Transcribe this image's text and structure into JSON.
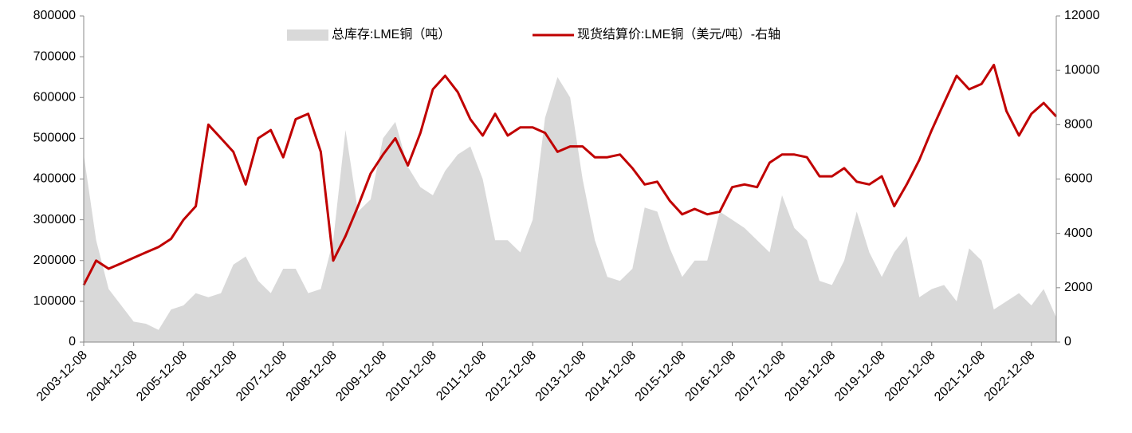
{
  "chart_data": {
    "type": "line",
    "x": [
      "2003-12-08",
      "2004-03-08",
      "2004-06-08",
      "2004-09-08",
      "2004-12-08",
      "2005-03-08",
      "2005-06-08",
      "2005-09-08",
      "2005-12-08",
      "2006-03-08",
      "2006-06-08",
      "2006-09-08",
      "2006-12-08",
      "2007-03-08",
      "2007-06-08",
      "2007-09-08",
      "2007-12-08",
      "2008-03-08",
      "2008-06-08",
      "2008-09-08",
      "2008-12-08",
      "2009-03-08",
      "2009-06-08",
      "2009-09-08",
      "2009-12-08",
      "2010-03-08",
      "2010-06-08",
      "2010-09-08",
      "2010-12-08",
      "2011-03-08",
      "2011-06-08",
      "2011-09-08",
      "2011-12-08",
      "2012-03-08",
      "2012-06-08",
      "2012-09-08",
      "2012-12-08",
      "2013-03-08",
      "2013-06-08",
      "2013-09-08",
      "2013-12-08",
      "2014-03-08",
      "2014-06-08",
      "2014-09-08",
      "2014-12-08",
      "2015-03-08",
      "2015-06-08",
      "2015-09-08",
      "2015-12-08",
      "2016-03-08",
      "2016-06-08",
      "2016-09-08",
      "2016-12-08",
      "2017-03-08",
      "2017-06-08",
      "2017-09-08",
      "2017-12-08",
      "2018-03-08",
      "2018-06-08",
      "2018-09-08",
      "2018-12-08",
      "2019-03-08",
      "2019-06-08",
      "2019-09-08",
      "2019-12-08",
      "2020-03-08",
      "2020-06-08",
      "2020-09-08",
      "2020-12-08",
      "2021-03-08",
      "2021-06-08",
      "2021-09-08",
      "2021-12-08",
      "2022-03-08",
      "2022-06-08",
      "2022-09-08",
      "2022-12-08",
      "2023-03-08",
      "2023-06-08"
    ],
    "series": [
      {
        "name": "总库存:LME铜（吨）",
        "color": "#d9d9d9",
        "style": "area",
        "values": [
          460000,
          250000,
          130000,
          90000,
          50000,
          45000,
          30000,
          80000,
          90000,
          120000,
          110000,
          120000,
          190000,
          210000,
          150000,
          120000,
          180000,
          180000,
          120000,
          130000,
          250000,
          520000,
          320000,
          350000,
          500000,
          540000,
          430000,
          380000,
          360000,
          420000,
          460000,
          480000,
          400000,
          250000,
          250000,
          220000,
          300000,
          550000,
          650000,
          600000,
          400000,
          250000,
          160000,
          150000,
          180000,
          330000,
          320000,
          230000,
          160000,
          200000,
          200000,
          320000,
          300000,
          280000,
          250000,
          220000,
          360000,
          280000,
          250000,
          150000,
          140000,
          200000,
          320000,
          220000,
          160000,
          220000,
          260000,
          110000,
          130000,
          140000,
          100000,
          230000,
          200000,
          80000,
          100000,
          120000,
          90000,
          130000,
          60000
        ]
      },
      {
        "name": "现货结算价:LME铜（美元/吨）-右轴",
        "color": "#c00000",
        "style": "line",
        "axis": "y2",
        "values": [
          2100,
          3000,
          2700,
          2900,
          3100,
          3300,
          3500,
          3800,
          4500,
          5000,
          8000,
          7500,
          7000,
          5800,
          7500,
          7800,
          6800,
          8200,
          8400,
          7000,
          3000,
          3900,
          5000,
          6200,
          6900,
          7500,
          6500,
          7700,
          9300,
          9800,
          9200,
          8200,
          7600,
          8400,
          7600,
          7900,
          7900,
          7700,
          7000,
          7200,
          7200,
          6800,
          6800,
          6900,
          6400,
          5800,
          5900,
          5200,
          4700,
          4900,
          4700,
          4800,
          5700,
          5800,
          5700,
          6600,
          6900,
          6900,
          6800,
          6100,
          6100,
          6400,
          5900,
          5800,
          6100,
          5000,
          5800,
          6700,
          7800,
          8800,
          9800,
          9300,
          9500,
          10200,
          8500,
          7600,
          8400,
          8800,
          8300
        ]
      }
    ],
    "xlim": [
      "2003-12-08",
      "2023-06-08"
    ],
    "xticks": [
      "2003-12-08",
      "2004-12-08",
      "2005-12-08",
      "2006-12-08",
      "2007-12-08",
      "2008-12-08",
      "2009-12-08",
      "2010-12-08",
      "2011-12-08",
      "2012-12-08",
      "2013-12-08",
      "2014-12-08",
      "2015-12-08",
      "2016-12-08",
      "2017-12-08",
      "2018-12-08",
      "2019-12-08",
      "2020-12-08",
      "2021-12-08",
      "2022-12-08"
    ],
    "ylim": [
      0,
      800000
    ],
    "yticks": [
      0,
      100000,
      200000,
      300000,
      400000,
      500000,
      600000,
      700000,
      800000
    ],
    "y2lim": [
      0,
      12000
    ],
    "y2ticks": [
      0,
      2000,
      4000,
      6000,
      8000,
      10000,
      12000
    ],
    "legend": "top"
  }
}
